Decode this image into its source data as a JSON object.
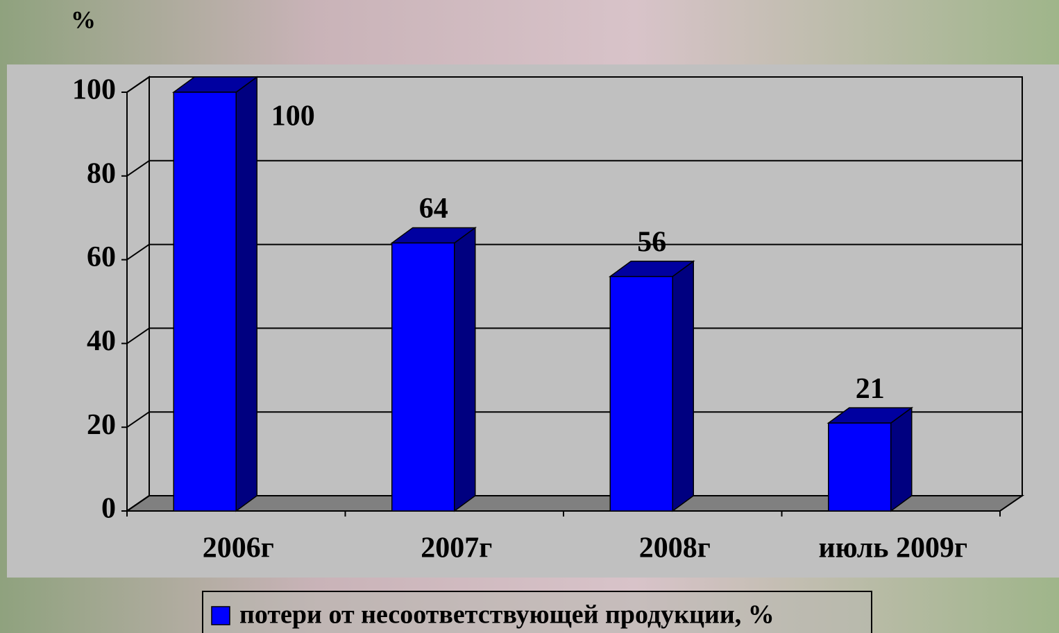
{
  "chart_data": {
    "type": "bar",
    "y_label": "%",
    "categories": [
      "2006г",
      "2007г",
      "2008г",
      "июль 2009г"
    ],
    "series": [
      {
        "name": "потери от несоответствующей продукции, %",
        "color": "#0000ff",
        "values": [
          100,
          64,
          56,
          21
        ]
      }
    ],
    "ylim": [
      0,
      100
    ],
    "yticks": [
      0,
      20,
      40,
      60,
      80,
      100
    ],
    "grid": true,
    "legend": "bottom"
  }
}
